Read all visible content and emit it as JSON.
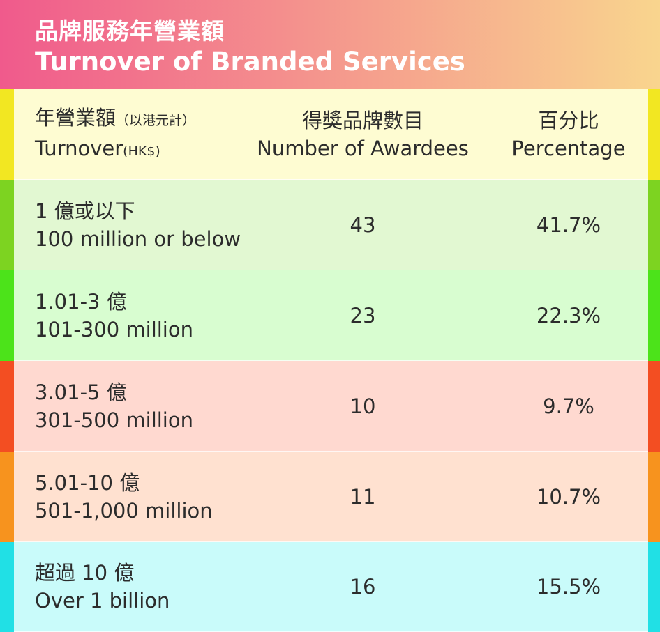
{
  "header": {
    "title_zh": "品牌服務年營業額",
    "title_en": "Turnover of Branded Services",
    "gradient": [
      "#F05A8C",
      "#F9D58E"
    ]
  },
  "columns": [
    {
      "zh": "年營業額",
      "zh_note": "（以港元計）",
      "en": "Turnover",
      "en_note": "(HK$)"
    },
    {
      "zh": "得獎品牌數目",
      "en": "Number of Awardees"
    },
    {
      "zh": "百分比",
      "en": "Percentage"
    }
  ],
  "header_row_colors": {
    "bg": "#FEFCD2",
    "accent": "#F2E722"
  },
  "rows": [
    {
      "zh": "1 億或以下",
      "en": "100 million or below",
      "count": "43",
      "percent": "41.7%",
      "bg": "#E2F8D2",
      "accent": "#7DD321"
    },
    {
      "zh": "1.01-3 億",
      "en": "101-300 million",
      "count": "23",
      "percent": "22.3%",
      "bg": "#D8FDD0",
      "accent": "#4CE31A"
    },
    {
      "zh": "3.01-5 億",
      "en": "301-500 million",
      "count": "10",
      "percent": "9.7%",
      "bg": "#FFD9D0",
      "accent": "#F34E22"
    },
    {
      "zh": "5.01-10 億",
      "en": "501-1,000 million",
      "count": "11",
      "percent": "10.7%",
      "bg": "#FFE1D0",
      "accent": "#F7931E"
    },
    {
      "zh": "超過 10 億",
      "en": "Over 1 billion",
      "count": "16",
      "percent": "15.5%",
      "bg": "#C9FBFA",
      "accent": "#21E0E5"
    }
  ],
  "chart_data": {
    "type": "table",
    "title": "Turnover of Branded Services",
    "columns": [
      "Turnover (HK$)",
      "Number of Awardees",
      "Percentage"
    ],
    "rows": [
      [
        "100 million or below",
        43,
        41.7
      ],
      [
        "101-300 million",
        23,
        22.3
      ],
      [
        "301-500 million",
        10,
        9.7
      ],
      [
        "501-1,000 million",
        11,
        10.7
      ],
      [
        "Over 1 billion",
        16,
        15.5
      ]
    ]
  }
}
